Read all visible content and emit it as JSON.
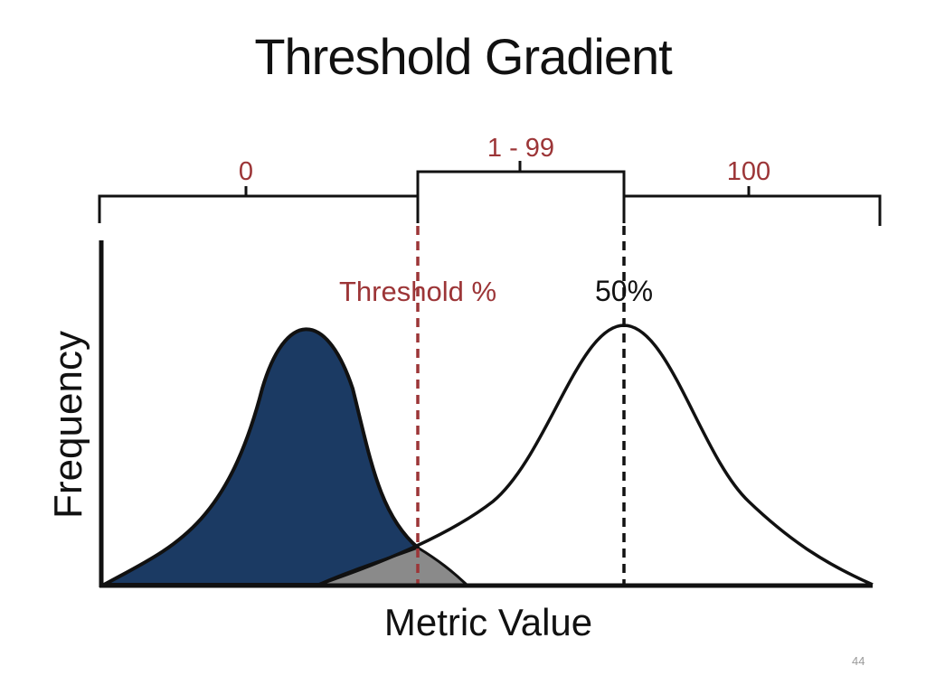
{
  "title": "Threshold Gradient",
  "slide_number": "44",
  "diagram": {
    "scale": {
      "left_label": "0",
      "middle_label": "1 - 99",
      "right_label": "100"
    },
    "threshold_label": "Threshold %",
    "midpoint_label": "50%",
    "y_axis_label": "Frequency",
    "x_axis_label": "Metric Value"
  },
  "colors": {
    "left_curve_fill": "#1b3a63",
    "overlap_fill": "#8a8a8a",
    "threshold_line": "#9c3537",
    "label_red": "#9c3537",
    "line_dark": "#111111"
  }
}
